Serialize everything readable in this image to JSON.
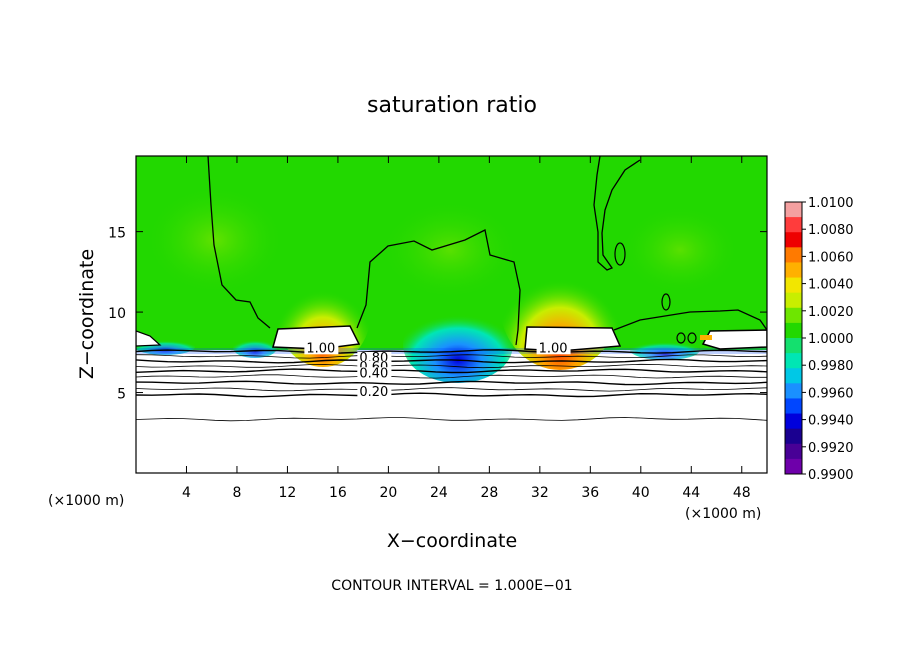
{
  "chart_data": {
    "type": "heatmap",
    "title": "saturation ratio",
    "xlabel": "X−coordinate",
    "ylabel": "Z−coordinate",
    "x_unit_left": "(×1000 m)",
    "x_unit_right": "(×1000 m)",
    "xlim": [
      0,
      50
    ],
    "ylim": [
      0,
      19.7
    ],
    "x_ticks": [
      4,
      8,
      12,
      16,
      20,
      24,
      28,
      32,
      36,
      40,
      44,
      48
    ],
    "x_tick_labels": [
      "4",
      "8",
      "12",
      "16",
      "20",
      "24",
      "28",
      "32",
      "36",
      "40",
      "44",
      "48"
    ],
    "y_ticks": [
      5,
      10,
      15
    ],
    "y_tick_labels": [
      "5",
      "10",
      "15"
    ],
    "colorbar": {
      "labels": [
        "1.0100",
        "1.0080",
        "1.0060",
        "1.0040",
        "1.0020",
        "1.0000",
        "0.9980",
        "0.9960",
        "0.9940",
        "0.9920",
        "0.9900"
      ],
      "colors": [
        "#f4a0a0",
        "#ff3c3c",
        "#ee0000",
        "#ff7a00",
        "#ffb000",
        "#f2e600",
        "#c8ee00",
        "#6ee600",
        "#22d800",
        "#14e06e",
        "#00e6b4",
        "#00c8e6",
        "#1a90ff",
        "#0046ff",
        "#0000dc",
        "#1a0090",
        "#480096",
        "#6e00aa"
      ]
    },
    "contours": {
      "interval_label": "CONTOUR INTERVAL = 1.000E−01",
      "levels": [
        1.0,
        0.9,
        0.8,
        0.7,
        0.6,
        0.5,
        0.4,
        0.3,
        0.2,
        0.1
      ],
      "visible_labels": [
        {
          "text": "1.00",
          "x": 13.5,
          "y": 7.5
        },
        {
          "text": "0.80",
          "x": 17.7,
          "y": 6.9
        },
        {
          "text": "0.60",
          "x": 17.7,
          "y": 6.35
        },
        {
          "text": "0.40",
          "x": 17.7,
          "y": 5.95
        },
        {
          "text": "0.20",
          "x": 17.7,
          "y": 4.8
        },
        {
          "text": "1.00",
          "x": 31.9,
          "y": 7.5
        }
      ],
      "cloud_regions": [
        {
          "name": "left-cloud",
          "x": [
            10.8,
            17.6
          ],
          "y": [
            7.8,
            9.4
          ]
        },
        {
          "name": "right-cloud",
          "x": [
            30.4,
            37.6
          ],
          "y": [
            7.8,
            9.4
          ]
        },
        {
          "name": "far-right-cloud",
          "x": [
            45.2,
            50
          ],
          "y": [
            7.8,
            9.0
          ]
        }
      ]
    }
  }
}
